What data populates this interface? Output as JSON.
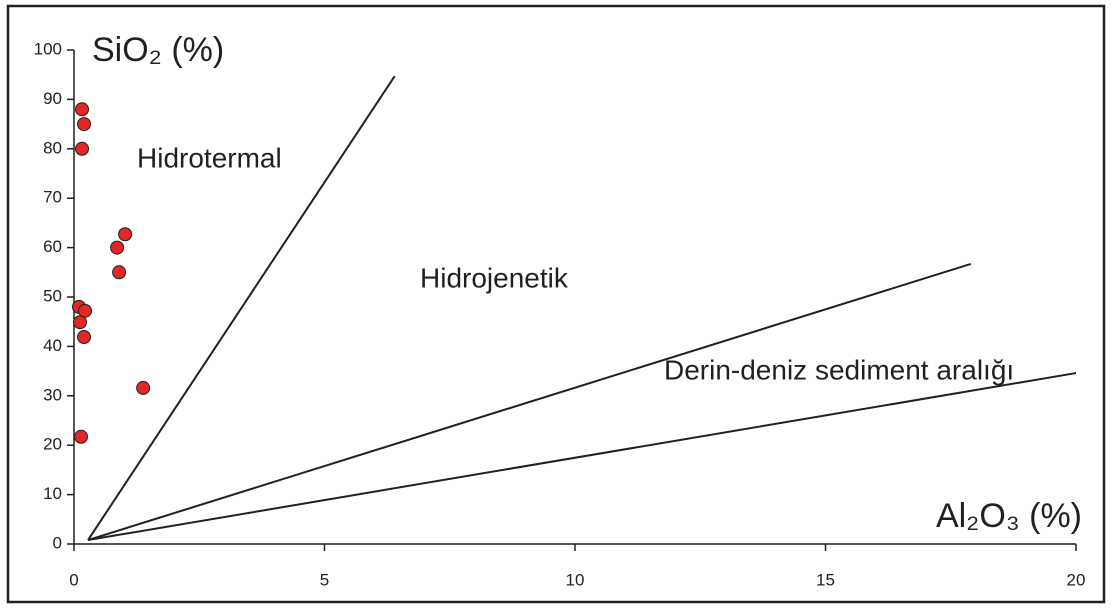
{
  "chart_data": {
    "type": "scatter",
    "x_label": "Al₂O₃ (%)",
    "y_label": "SiO₂ (%)",
    "x": [
      0.16,
      0.2,
      0.16,
      1.02,
      0.86,
      0.9,
      0.1,
      0.22,
      0.12,
      0.2,
      1.38,
      0.14
    ],
    "values": [
      88,
      85,
      80,
      62.7,
      60,
      55,
      48,
      47.2,
      44.9,
      41.9,
      31.6,
      21.7
    ],
    "color": "#e32726",
    "lines": [
      {
        "color": "#231f20",
        "x": [
          0.28,
          6.4
        ],
        "y": [
          0.8,
          94.7
        ]
      },
      {
        "color": "#231f20",
        "x": [
          0.28,
          17.9
        ],
        "y": [
          0.8,
          56.7
        ]
      },
      {
        "color": "#231f20",
        "x": [
          0.28,
          20
        ],
        "y": [
          0.8,
          34.6
        ]
      }
    ],
    "annotations": [
      "Hidrotermal",
      "Hidrojenetik",
      "Derin-deniz sediment aralığı"
    ],
    "xlim": [
      0,
      20
    ],
    "xticks": [
      0,
      5,
      10,
      15,
      20
    ],
    "ylim": [
      0,
      100
    ],
    "yticks": [
      0,
      10,
      20,
      30,
      40,
      50,
      60,
      70,
      80,
      90,
      100
    ],
    "grid": false
  }
}
